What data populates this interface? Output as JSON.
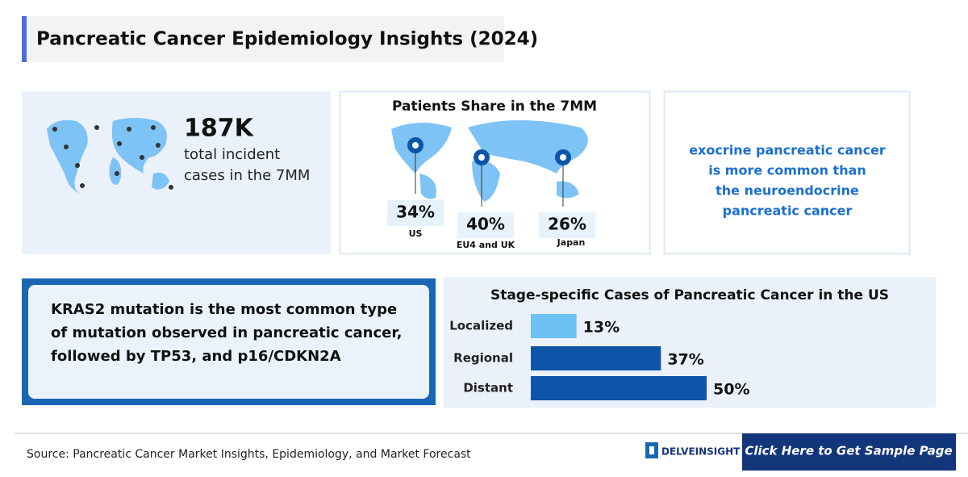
{
  "header": {
    "title": "Pancreatic Cancer Epidemiology Insights (2024)"
  },
  "incidence": {
    "value": "187K",
    "lines": [
      "total incident",
      "cases in the 7MM"
    ]
  },
  "share": {
    "title": "Patients Share in the 7MM",
    "items": [
      {
        "value": "34%",
        "region": "US"
      },
      {
        "value": "40%",
        "region": "EU4 and UK"
      },
      {
        "value": "26%",
        "region": "Japan"
      }
    ]
  },
  "note": {
    "lines": [
      "exocrine pancreatic cancer",
      "is more common than",
      "the neuroendocrine",
      "pancreatic cancer"
    ]
  },
  "mutation": {
    "lines": [
      "KRAS2 mutation is the most common type",
      "of mutation observed in pancreatic cancer,",
      "followed by TP53, and p16/CDKN2A"
    ]
  },
  "chart_data": {
    "type": "bar",
    "orientation": "horizontal",
    "title": "Stage-specific Cases of Pancreatic Cancer in the US",
    "categories": [
      "Localized",
      "Regional",
      "Distant"
    ],
    "values": [
      13,
      37,
      50
    ],
    "value_labels": [
      "13%",
      "37%",
      "50%"
    ],
    "colors": [
      "#6ec1f5",
      "#0d55a8",
      "#0d55a8"
    ]
  },
  "footer": {
    "source": "Source: Pancreatic Cancer Market Insights, Epidemiology, and Market Forecast",
    "brand": "DELVEINSIGHT",
    "button": "Click Here to Get Sample Page"
  }
}
